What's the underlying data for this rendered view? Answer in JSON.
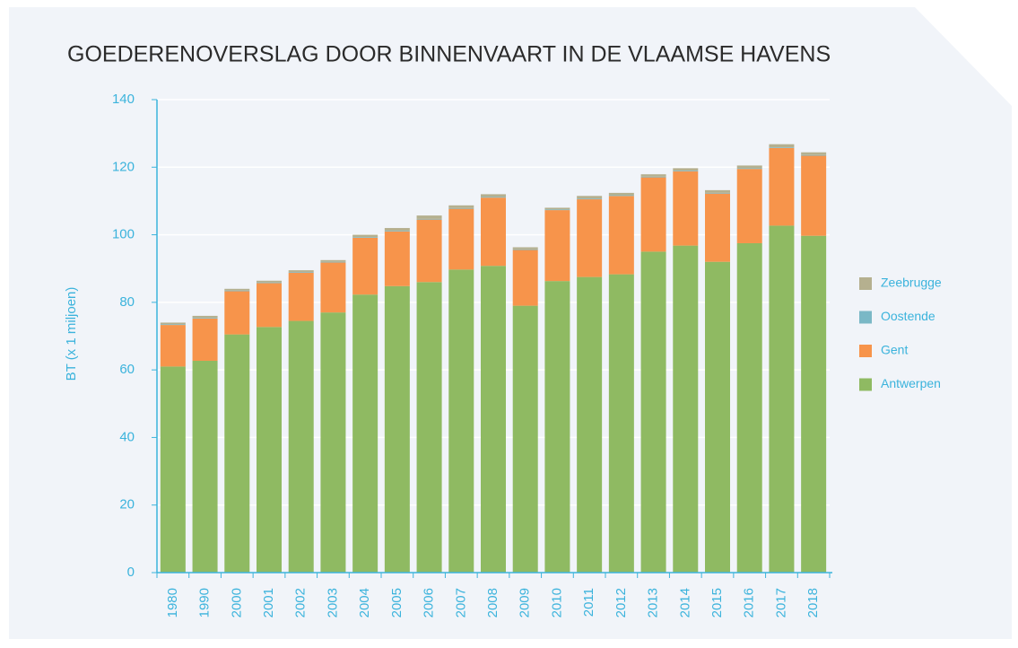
{
  "chart_data": {
    "type": "stacked_bar",
    "title": "GOEDERENOVERSLAG DOOR BINNENVAART IN DE VLAAMSE HAVENS",
    "y_label": "BT (x 1 miljoen)",
    "categories": [
      "1980",
      "1990",
      "2000",
      "2001",
      "2002",
      "2003",
      "2004",
      "2005",
      "2006",
      "2007",
      "2008",
      "2009",
      "2010",
      "2011",
      "2012",
      "2013",
      "2014",
      "2015",
      "2016",
      "2017",
      "2018"
    ],
    "series": [
      {
        "name": "Antwerpen",
        "color": "#8fba62",
        "values": [
          61,
          62.7,
          70.5,
          72.7,
          74.5,
          77,
          82.3,
          84.8,
          86,
          89.7,
          90.8,
          79,
          86.3,
          87.5,
          88.3,
          95,
          96.8,
          92,
          97.5,
          102.7,
          99.7
        ]
      },
      {
        "name": "Gent",
        "color": "#f7944b",
        "values": [
          12.3,
          12.5,
          12.8,
          13,
          14.3,
          14.8,
          16.8,
          16.2,
          18.5,
          18,
          20.2,
          16.5,
          21,
          23,
          23.2,
          22,
          22,
          20.2,
          22,
          23,
          23.7
        ]
      },
      {
        "name": "Oostende",
        "color": "#7ab8c6",
        "values": [
          0.2,
          0.2,
          0.2,
          0.2,
          0.2,
          0.2,
          0.2,
          0.2,
          0.2,
          0.2,
          0.2,
          0.2,
          0.2,
          0.2,
          0.2,
          0.2,
          0.2,
          0.2,
          0.2,
          0.2,
          0.2
        ]
      },
      {
        "name": "Zeebrugge",
        "color": "#b5b08f",
        "values": [
          0.5,
          0.6,
          0.5,
          0.5,
          0.5,
          0.5,
          0.7,
          0.8,
          1,
          0.8,
          0.8,
          0.6,
          0.5,
          0.8,
          0.7,
          0.7,
          0.7,
          0.8,
          0.8,
          0.9,
          0.8
        ]
      }
    ],
    "ylim": [
      0,
      140
    ],
    "yticks": [
      0,
      20,
      40,
      60,
      80,
      100,
      120,
      140
    ],
    "grid": true,
    "legend": "right"
  }
}
